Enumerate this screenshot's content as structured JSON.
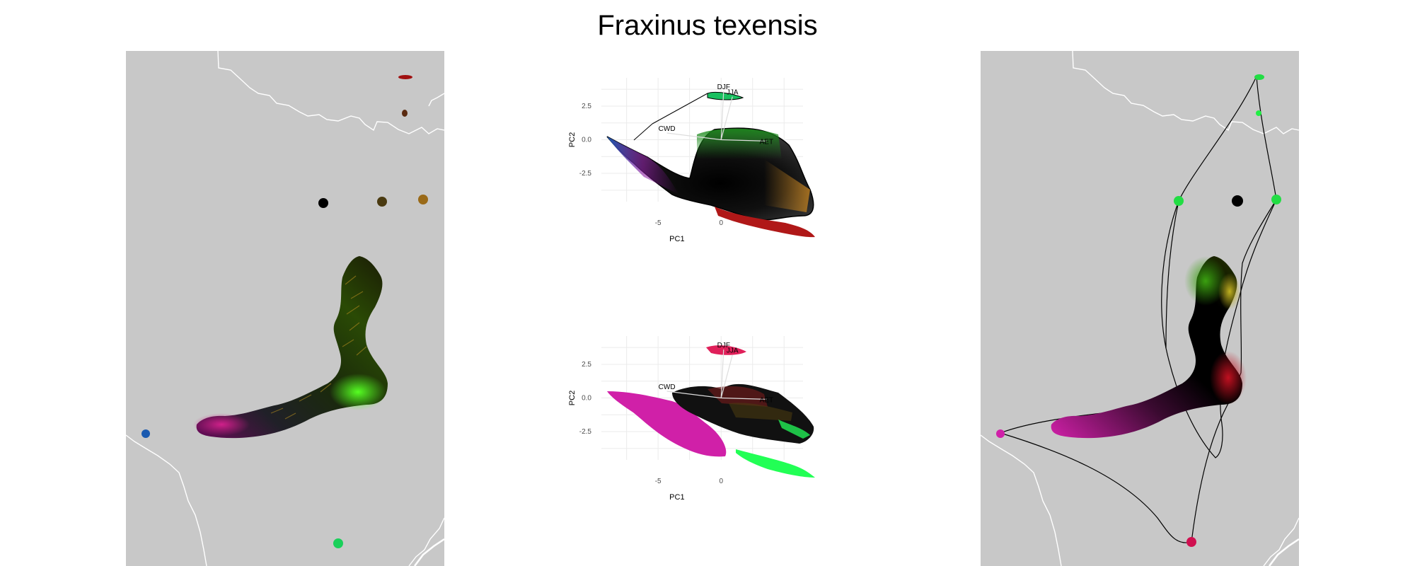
{
  "title": "Fraxinus texensis",
  "colors": {
    "map_background": "#c8c8c8",
    "border_line": "#ffffff",
    "grid": "#ebebeb"
  },
  "chart_data": [
    {
      "type": "scatter",
      "panel": "pca-top",
      "xlabel": "PC1",
      "ylabel": "PC2",
      "xlim": [
        -9.5,
        6.5
      ],
      "ylim": [
        -4.6,
        4.6
      ],
      "x_ticks": [
        -5,
        0
      ],
      "y_ticks": [
        2.5,
        0.0,
        -2.5
      ],
      "x_tick_labels": [
        "-5",
        "0"
      ],
      "y_tick_labels": [
        "2.5",
        "0.0",
        "-2.5"
      ],
      "grid": true,
      "vectors": [
        {
          "label": "DJF",
          "x": 0.2,
          "y": 3.6
        },
        {
          "label": "JJA",
          "x": 0.9,
          "y": 3.2
        },
        {
          "label": "CWD",
          "x": -4.3,
          "y": 0.5
        },
        {
          "label": "AET",
          "x": 3.6,
          "y": -0.1
        }
      ]
    },
    {
      "type": "scatter",
      "panel": "pca-bottom",
      "xlabel": "PC1",
      "ylabel": "PC2",
      "xlim": [
        -9.5,
        6.5
      ],
      "ylim": [
        -4.6,
        4.6
      ],
      "x_ticks": [
        -5,
        0
      ],
      "y_ticks": [
        2.5,
        0.0,
        -2.5
      ],
      "x_tick_labels": [
        "-5",
        "0"
      ],
      "y_tick_labels": [
        "2.5",
        "0.0",
        "-2.5"
      ],
      "grid": true,
      "vectors": [
        {
          "label": "DJF",
          "x": 0.2,
          "y": 3.6
        },
        {
          "label": "JJA",
          "x": 0.9,
          "y": 3.2
        },
        {
          "label": "CWD",
          "x": -4.3,
          "y": 0.5
        },
        {
          "label": "AET",
          "x": 3.6,
          "y": -0.1
        }
      ]
    }
  ]
}
